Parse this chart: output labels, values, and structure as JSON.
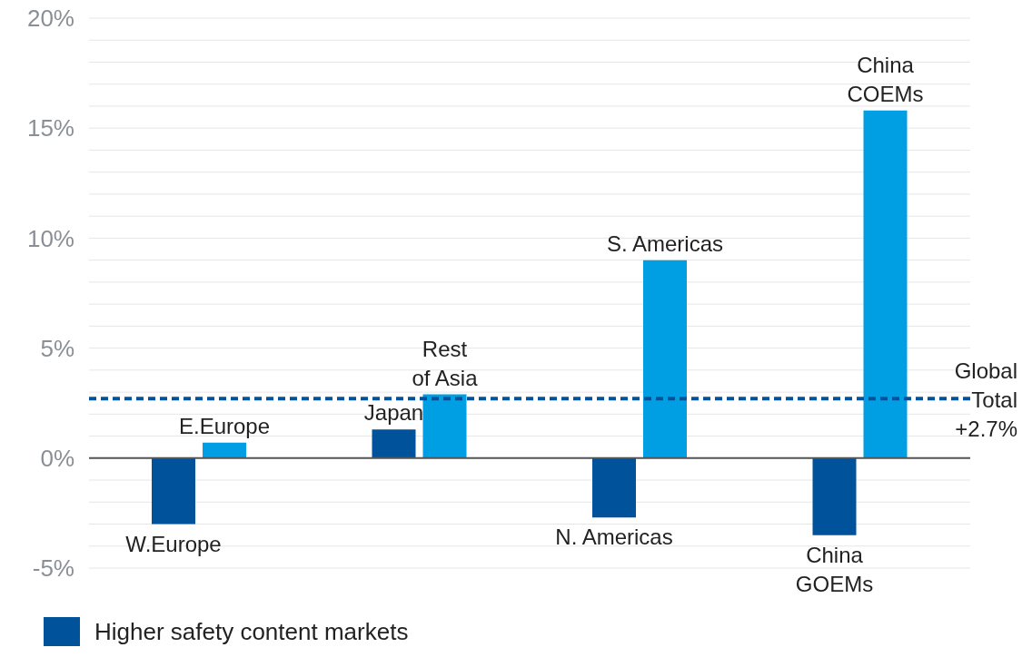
{
  "chart_data": {
    "type": "bar",
    "categories": [
      null,
      null,
      null,
      null
    ],
    "series": [
      {
        "name": "Higher safety content markets",
        "color": "#00539b",
        "values": [
          -3.0,
          1.3,
          -2.7,
          -3.5
        ]
      },
      {
        "color": "#009fe3",
        "values": [
          0.7,
          2.9,
          9.0,
          15.8
        ]
      }
    ],
    "ylim": [
      -5,
      20
    ],
    "yticks": [
      {
        "value": -5,
        "label": "-5%"
      },
      {
        "value": -4,
        "label": null
      },
      {
        "value": -3,
        "label": null
      },
      {
        "value": -2,
        "label": null
      },
      {
        "value": -1,
        "label": null
      },
      {
        "value": 0,
        "label": "0%"
      },
      {
        "value": 1,
        "label": null
      },
      {
        "value": 2,
        "label": null
      },
      {
        "value": 3,
        "label": null
      },
      {
        "value": 4,
        "label": null
      },
      {
        "value": 5,
        "label": "5%"
      },
      {
        "value": 6,
        "label": null
      },
      {
        "value": 7,
        "label": null
      },
      {
        "value": 8,
        "label": null
      },
      {
        "value": 9,
        "label": null
      },
      {
        "value": 10,
        "label": "10%"
      },
      {
        "value": 11,
        "label": null
      },
      {
        "value": 12,
        "label": null
      },
      {
        "value": 13,
        "label": null
      },
      {
        "value": 14,
        "label": null
      },
      {
        "value": 15,
        "label": "15%"
      },
      {
        "value": 16,
        "label": null
      },
      {
        "value": 17,
        "label": null
      },
      {
        "value": 18,
        "label": null
      },
      {
        "value": 19,
        "label": null
      },
      {
        "value": 20,
        "label": "20%"
      }
    ],
    "grid": "y",
    "ref_lines": [
      {
        "axis": "y",
        "value": 2.7,
        "label": "Global\nTotal\n+2.7%",
        "color": "#00539b",
        "line_style": "dashed"
      }
    ],
    "annotations": [
      "W.Europe",
      "E.Europe",
      "Japan",
      "Rest\nof Asia",
      "N. Americas",
      "S. Americas",
      "China\nGOEMs",
      "China\nCOEMs"
    ],
    "legend": "bottom left"
  }
}
